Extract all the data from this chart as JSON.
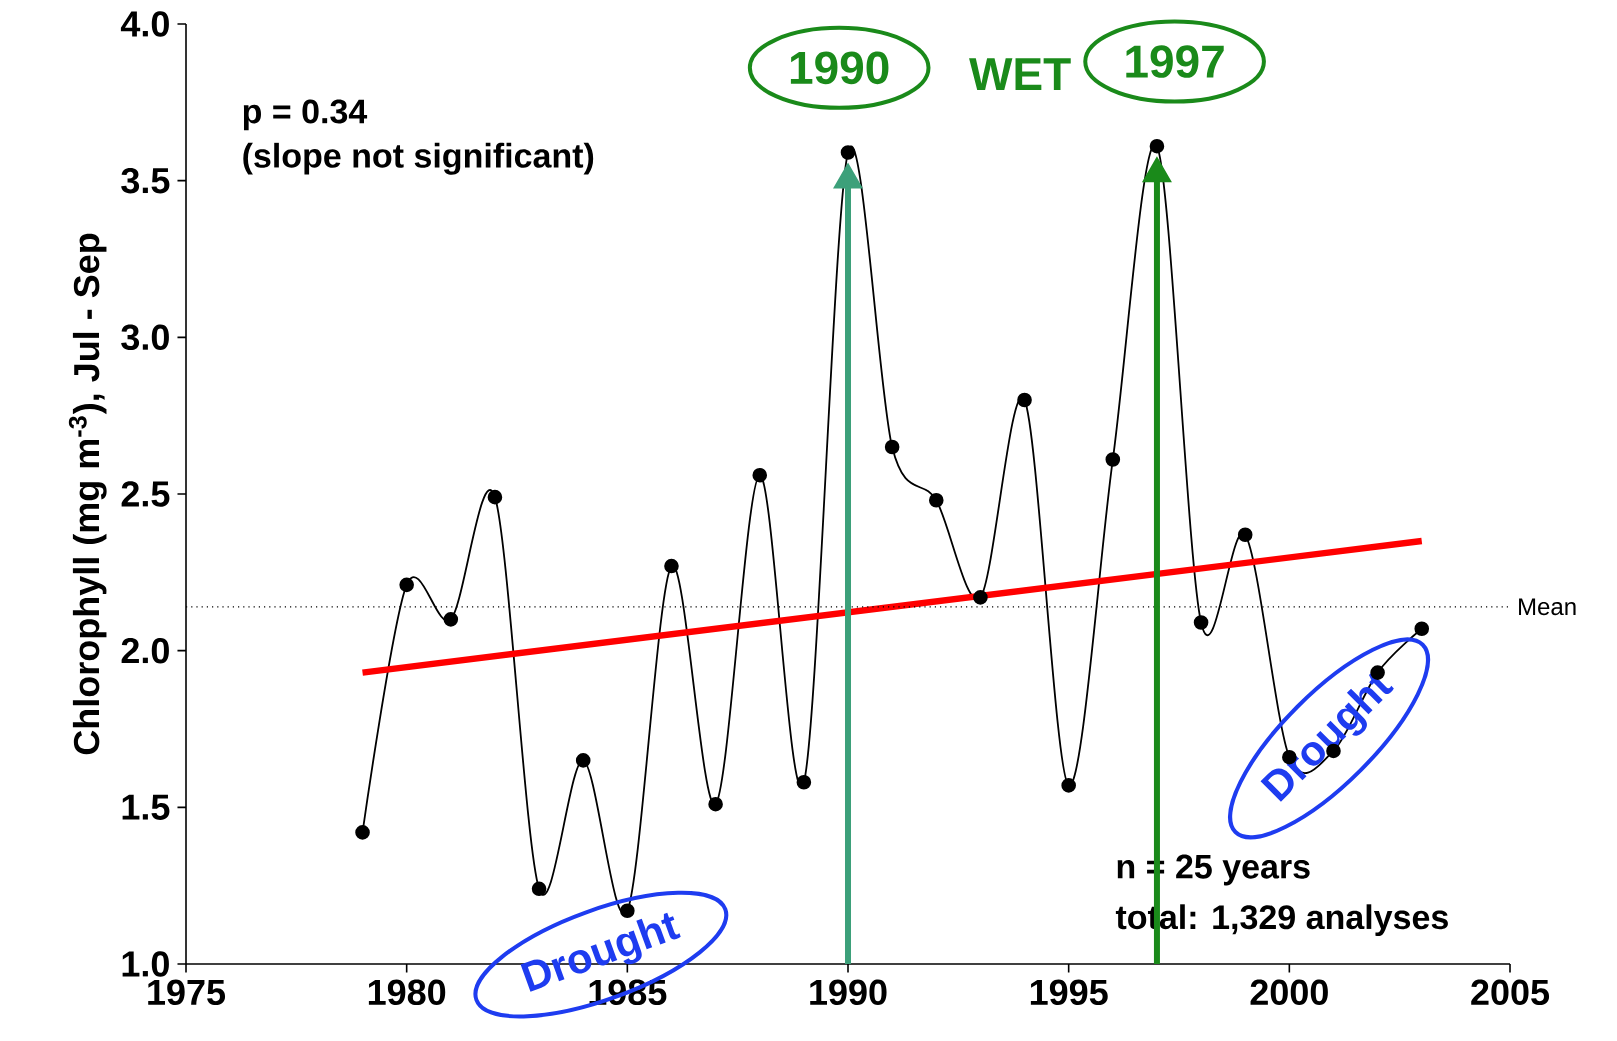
{
  "chart_data": {
    "type": "line",
    "ylabel": "Chlorophyll (mg m$^{-3}$),  Jul - Sep",
    "x": [
      1979,
      1980,
      1981,
      1982,
      1983,
      1984,
      1985,
      1986,
      1987,
      1988,
      1989,
      1990,
      1991,
      1992,
      1993,
      1994,
      1995,
      1996,
      1997,
      1998,
      1999,
      2000,
      2001,
      2002,
      2003
    ],
    "series": [
      {
        "color": "#000000",
        "values": [
          1.42,
          2.21,
          2.1,
          2.49,
          1.24,
          1.65,
          1.17,
          2.27,
          1.51,
          2.56,
          1.58,
          3.59,
          2.65,
          2.48,
          2.17,
          2.8,
          1.57,
          2.61,
          3.61,
          2.09,
          2.37,
          1.66,
          1.68,
          1.93,
          2.07
        ]
      },
      {
        "color": "#ff0000",
        "x": [
          1979,
          2003
        ],
        "values": [
          1.93,
          2.35
        ],
        "marker": "none"
      }
    ],
    "marker": "circle",
    "xlim": [
      1975,
      2005
    ],
    "xticks": [
      1975,
      1980,
      1985,
      1990,
      1995,
      2000,
      2005
    ],
    "ylim": [
      1,
      4
    ],
    "yticks": [
      {
        "value": 1,
        "label": "1.0"
      },
      {
        "value": 1.5,
        "label": "1.5"
      },
      {
        "value": 2,
        "label": "2.0"
      },
      {
        "value": 2.5,
        "label": "2.5"
      },
      {
        "value": 3,
        "label": "3.0"
      },
      {
        "value": 3.5,
        "label": "3.5"
      },
      {
        "value": 4,
        "label": "4.0"
      }
    ],
    "ref_lines": [
      {
        "axis": "y",
        "value": 2.14,
        "label": "Mean",
        "line_style": "dotted",
        "color": "#000000"
      }
    ],
    "annotations": [
      "p = 0.34",
      "(slope not significant)",
      {
        "text": "1990",
        "x": 1990,
        "y": 3.59
      },
      "WET",
      {
        "text": "1997",
        "x": 1997,
        "y": 3.61
      },
      "Drought",
      "Drought",
      "n = 25 years",
      "total:  1,329 analyses"
    ]
  }
}
